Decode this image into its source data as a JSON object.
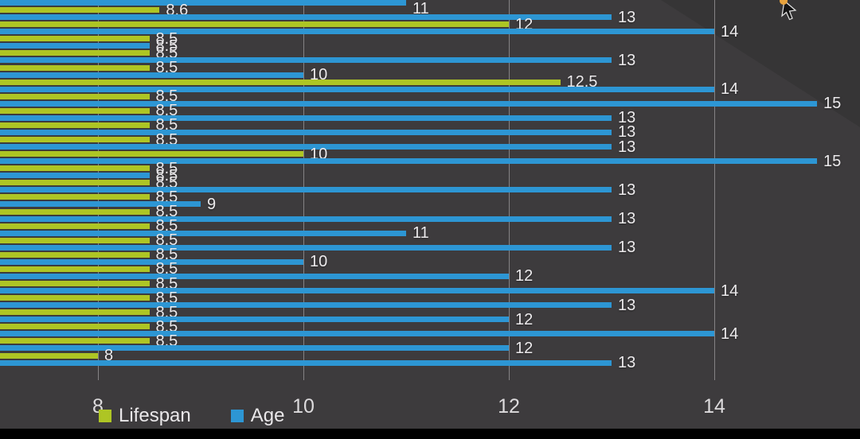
{
  "chart_data": {
    "type": "bar",
    "orientation": "horizontal",
    "title": "",
    "xlabel": "",
    "ylabel": "",
    "grid": "vertical",
    "legend_position": "bottom-left",
    "x_ticks": [
      "8",
      "10",
      "12",
      "14"
    ],
    "x_tick_values": [
      8,
      10,
      12,
      14
    ],
    "xlim_visible": [
      7.05,
      15.45
    ],
    "series": [
      {
        "name": "Lifespan",
        "color": "#aec524"
      },
      {
        "name": "Age",
        "color": "#2d96d4"
      }
    ],
    "rows": [
      {
        "lifespan": 8.5,
        "age": 11
      },
      {
        "lifespan": 8.6,
        "age": 13
      },
      {
        "lifespan": 12,
        "age": 14
      },
      {
        "lifespan": 8.5,
        "age": 8.5
      },
      {
        "lifespan": 8.5,
        "age": 13
      },
      {
        "lifespan": 8.5,
        "age": 10
      },
      {
        "lifespan": 12.5,
        "age": 14
      },
      {
        "lifespan": 8.5,
        "age": 15
      },
      {
        "lifespan": 8.5,
        "age": 13
      },
      {
        "lifespan": 8.5,
        "age": 13
      },
      {
        "lifespan": 8.5,
        "age": 13
      },
      {
        "lifespan": 10,
        "age": 15
      },
      {
        "lifespan": 8.5,
        "age": 8.5
      },
      {
        "lifespan": 8.5,
        "age": 13
      },
      {
        "lifespan": 8.5,
        "age": 9
      },
      {
        "lifespan": 8.5,
        "age": 13
      },
      {
        "lifespan": 8.5,
        "age": 11
      },
      {
        "lifespan": 8.5,
        "age": 13
      },
      {
        "lifespan": 8.5,
        "age": 10
      },
      {
        "lifespan": 8.5,
        "age": 12
      },
      {
        "lifespan": 8.5,
        "age": 14
      },
      {
        "lifespan": 8.5,
        "age": 13
      },
      {
        "lifespan": 8.5,
        "age": 12
      },
      {
        "lifespan": 8.5,
        "age": 14
      },
      {
        "lifespan": 8.5,
        "age": 12
      },
      {
        "lifespan": 8,
        "age": 13
      }
    ]
  },
  "icons": {
    "cursor": "mouse-cursor"
  },
  "colors": {
    "background": "#3d3b3d",
    "gridline": "#858385",
    "label_text": "#eceaec",
    "lifespan_green": "#aec524",
    "age_blue": "#2d96d4",
    "letterbox": "#000000",
    "cursor_dot": "#e8a33d"
  }
}
